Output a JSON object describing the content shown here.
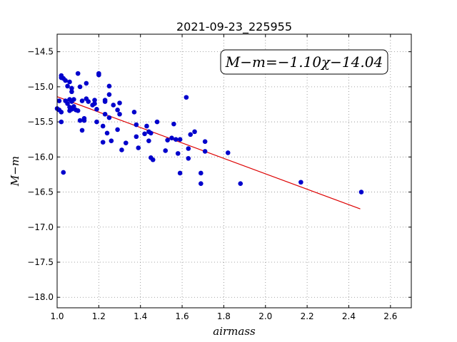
{
  "chart_data": {
    "type": "scatter",
    "title": "2021-09-23_225955",
    "xlabel": "airmass",
    "ylabel": "M−m",
    "xlim": [
      1.0,
      2.7
    ],
    "ylim": [
      -18.15,
      -14.25
    ],
    "x_ticks": [
      "1.0",
      "1.2",
      "1.4",
      "1.6",
      "1.8",
      "2.0",
      "2.2",
      "2.4",
      "2.6"
    ],
    "y_ticks": [
      "−18.0",
      "−17.5",
      "−17.0",
      "−16.5",
      "−16.0",
      "−15.5",
      "−15.0",
      "−14.5"
    ],
    "grid": true,
    "annotation": "M−m=−1.10χ−14.04",
    "colors": {
      "points": "#0000cc",
      "fit": "#dd0000",
      "grid": "#888888"
    },
    "series": [
      {
        "points": [
          [
            1.0,
            -15.31
          ],
          [
            1.01,
            -15.2
          ],
          [
            1.01,
            -15.33
          ],
          [
            1.02,
            -15.36
          ],
          [
            1.02,
            -15.5
          ],
          [
            1.02,
            -14.87
          ],
          [
            1.02,
            -14.84
          ],
          [
            1.03,
            -16.22
          ],
          [
            1.03,
            -14.88
          ],
          [
            1.04,
            -15.2
          ],
          [
            1.04,
            -14.91
          ],
          [
            1.05,
            -15.24
          ],
          [
            1.05,
            -14.99
          ],
          [
            1.06,
            -15.18
          ],
          [
            1.06,
            -15.29
          ],
          [
            1.06,
            -15.34
          ],
          [
            1.06,
            -14.93
          ],
          [
            1.07,
            -15.02
          ],
          [
            1.07,
            -15.07
          ],
          [
            1.07,
            -15.21
          ],
          [
            1.07,
            -15.32
          ],
          [
            1.08,
            -15.18
          ],
          [
            1.08,
            -15.28
          ],
          [
            1.09,
            -15.33
          ],
          [
            1.1,
            -15.34
          ],
          [
            1.1,
            -14.81
          ],
          [
            1.11,
            -15.0
          ],
          [
            1.11,
            -15.48
          ],
          [
            1.12,
            -15.2
          ],
          [
            1.12,
            -15.62
          ],
          [
            1.13,
            -15.45
          ],
          [
            1.13,
            -15.48
          ],
          [
            1.14,
            -15.17
          ],
          [
            1.14,
            -14.95
          ],
          [
            1.15,
            -15.21
          ],
          [
            1.17,
            -15.26
          ],
          [
            1.18,
            -15.24
          ],
          [
            1.18,
            -15.19
          ],
          [
            1.19,
            -15.5
          ],
          [
            1.19,
            -15.32
          ],
          [
            1.2,
            -14.83
          ],
          [
            1.2,
            -14.81
          ],
          [
            1.22,
            -15.79
          ],
          [
            1.22,
            -15.56
          ],
          [
            1.23,
            -15.19
          ],
          [
            1.23,
            -15.21
          ],
          [
            1.23,
            -15.39
          ],
          [
            1.24,
            -15.66
          ],
          [
            1.25,
            -15.11
          ],
          [
            1.25,
            -14.99
          ],
          [
            1.25,
            -15.44
          ],
          [
            1.26,
            -15.77
          ],
          [
            1.27,
            -15.26
          ],
          [
            1.29,
            -15.33
          ],
          [
            1.29,
            -15.61
          ],
          [
            1.3,
            -15.39
          ],
          [
            1.3,
            -15.23
          ],
          [
            1.31,
            -15.9
          ],
          [
            1.33,
            -15.8
          ],
          [
            1.37,
            -15.36
          ],
          [
            1.38,
            -15.71
          ],
          [
            1.38,
            -15.54
          ],
          [
            1.39,
            -15.87
          ],
          [
            1.42,
            -15.67
          ],
          [
            1.43,
            -15.56
          ],
          [
            1.44,
            -15.64
          ],
          [
            1.44,
            -15.77
          ],
          [
            1.45,
            -15.66
          ],
          [
            1.45,
            -16.01
          ],
          [
            1.46,
            -16.04
          ],
          [
            1.48,
            -15.5
          ],
          [
            1.52,
            -15.91
          ],
          [
            1.53,
            -15.76
          ],
          [
            1.55,
            -15.73
          ],
          [
            1.56,
            -15.53
          ],
          [
            1.57,
            -15.75
          ],
          [
            1.58,
            -15.95
          ],
          [
            1.59,
            -15.75
          ],
          [
            1.59,
            -16.23
          ],
          [
            1.62,
            -15.15
          ],
          [
            1.63,
            -15.88
          ],
          [
            1.63,
            -16.02
          ],
          [
            1.64,
            -15.68
          ],
          [
            1.66,
            -15.64
          ],
          [
            1.69,
            -16.23
          ],
          [
            1.69,
            -16.38
          ],
          [
            1.71,
            -15.78
          ],
          [
            1.71,
            -15.92
          ],
          [
            1.82,
            -15.94
          ],
          [
            1.88,
            -16.38
          ],
          [
            2.17,
            -16.36
          ],
          [
            2.46,
            -16.5
          ]
        ]
      }
    ],
    "fit": {
      "slope": -1.1,
      "intercept": -14.04,
      "x_range": [
        1.0,
        2.455
      ]
    }
  }
}
